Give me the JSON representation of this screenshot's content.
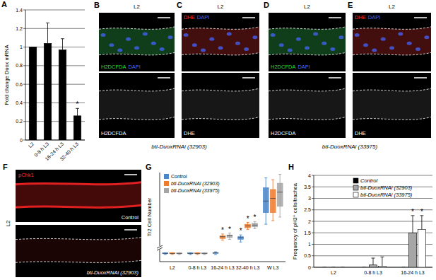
{
  "chart_data": [
    {
      "panel_label": "A",
      "type": "bar",
      "y_label": "Fold change Duox mRNA",
      "categories": [
        "L2",
        "0-8 h L3",
        "16-24 h L3",
        "32-40 h L3"
      ],
      "values": [
        1.0,
        1.04,
        0.97,
        0.26
      ],
      "errors": [
        0,
        0.22,
        0.12,
        0.08
      ],
      "color": "#000000",
      "ylim": [
        0,
        1.4
      ],
      "yticks": [
        0,
        0.2,
        0.4,
        0.6,
        0.8,
        1,
        1.2,
        1.4
      ],
      "grid": true,
      "annotations": [
        {
          "text": "*",
          "category": 3
        }
      ]
    },
    {
      "panel_label": "G",
      "type": "box",
      "y_label": "Tr2 Cell Number",
      "categories": [
        "L2",
        "0-8 h L3",
        "16-24 h L3",
        "32-40 h L3",
        "W L3"
      ],
      "ylim": [
        0,
        100
      ],
      "tick_labels": "x",
      "legend": "top-left",
      "series": [
        {
          "name": "Control",
          "color": "#4a86c8",
          "min": [
            8,
            8,
            8,
            22,
            42
          ],
          "q1": [
            9,
            9,
            9,
            25,
            55
          ],
          "median": [
            9,
            9,
            10,
            27,
            68
          ],
          "q3": [
            10,
            10,
            10,
            28,
            83
          ],
          "max": [
            10,
            10,
            11,
            30,
            94
          ]
        },
        {
          "name": "btl-DuoxRNAi (32903)",
          "color": "#ed7d31",
          "min": [
            8,
            8,
            24,
            36,
            46
          ],
          "q1": [
            9,
            9,
            26,
            38,
            55
          ],
          "median": [
            9,
            9,
            28,
            40,
            71
          ],
          "q3": [
            10,
            10,
            29,
            42,
            81
          ],
          "max": [
            10,
            10,
            31,
            44,
            92
          ]
        },
        {
          "name": "btl-DuoxRNAi (33975)",
          "color": "#a5a5a5",
          "min": [
            8,
            8,
            25,
            37,
            50
          ],
          "q1": [
            9,
            9,
            27,
            39,
            62
          ],
          "median": [
            9,
            9,
            29,
            41,
            78
          ],
          "q3": [
            10,
            10,
            30,
            43,
            88
          ],
          "max": [
            10,
            10,
            32,
            45,
            98
          ]
        }
      ],
      "annotations": [
        {
          "text": "*",
          "series": 1,
          "category": 2
        },
        {
          "text": "*",
          "series": 2,
          "category": 2
        },
        {
          "text": "*",
          "series": 0,
          "category": 3
        },
        {
          "text": "*",
          "series": 1,
          "category": 3
        },
        {
          "text": "*",
          "series": 2,
          "category": 3
        }
      ]
    },
    {
      "panel_label": "H",
      "type": "bar",
      "y_label": "Frequency of pH3⁺ cells/trachea",
      "categories": [
        "L2",
        "0-8 h L3",
        "16-24 h L3"
      ],
      "ylim": [
        0,
        4
      ],
      "yticks": [
        0,
        0.5,
        1,
        1.5,
        2,
        2.5,
        3,
        3.5,
        4
      ],
      "grid": true,
      "legend": "top-right",
      "series": [
        {
          "name": "Control",
          "color": "#000000",
          "values": [
            0,
            0,
            0
          ],
          "errors": [
            0,
            0,
            0
          ]
        },
        {
          "name": "btl-DuoxRNAi (32903)",
          "color": "#a6a6a6",
          "values": [
            0,
            0.1,
            1.5
          ],
          "errors": [
            0,
            0.3,
            0.75
          ]
        },
        {
          "name": "btl-DuoxRNAi (33975)",
          "color": "#ffffff",
          "values": [
            0,
            0.05,
            1.65
          ],
          "errors": [
            0,
            0.4,
            0.6
          ]
        }
      ],
      "annotations": [
        {
          "text": "*",
          "series": 1,
          "category": 2
        },
        {
          "text": "*",
          "series": 2,
          "category": 2
        }
      ]
    }
  ],
  "images": [
    {
      "panel_label": "B",
      "stage": "L2",
      "merged_labels": [
        {
          "text": "H2DCFDA",
          "color": "#33dd33"
        },
        {
          "text": "DAPI",
          "color": "#4466ff"
        }
      ],
      "channel_label": "H2DCFDA",
      "signal_color": "#2fae4a"
    },
    {
      "panel_label": "C",
      "stage": "L2",
      "merged_labels": [
        {
          "text": "DHE",
          "color": "#ff3030"
        },
        {
          "text": "DAPI",
          "color": "#4466ff"
        }
      ],
      "channel_label": "DHE",
      "signal_color": "#c02828"
    },
    {
      "panel_label": "D",
      "stage": "L2",
      "merged_labels": [
        {
          "text": "H2DCFDA",
          "color": "#33dd33"
        },
        {
          "text": "DAPI",
          "color": "#4466ff"
        }
      ],
      "channel_label": "H2DCFDA",
      "signal_color": "#2fae4a"
    },
    {
      "panel_label": "E",
      "stage": "L2",
      "merged_labels": [
        {
          "text": "DHE",
          "color": "#ff3030"
        },
        {
          "text": "DAPI",
          "color": "#4466ff"
        }
      ],
      "channel_label": "DHE",
      "signal_color": "#c02828"
    },
    {
      "panel_label": "F",
      "stage": "L2",
      "merged_labels": [
        {
          "text": "pChk1",
          "color": "#ff3030"
        }
      ],
      "signal_color": "#e02020",
      "top_caption": "Control",
      "bottom_caption": "btl-DuoxRNAi (32903)"
    }
  ],
  "captions": [
    {
      "text": "btl-DuoxRNAi (32903)",
      "panels": [
        "B",
        "C"
      ]
    },
    {
      "text": "btl-DuoxRNAi (33975)",
      "panels": [
        "D",
        "E"
      ]
    }
  ]
}
